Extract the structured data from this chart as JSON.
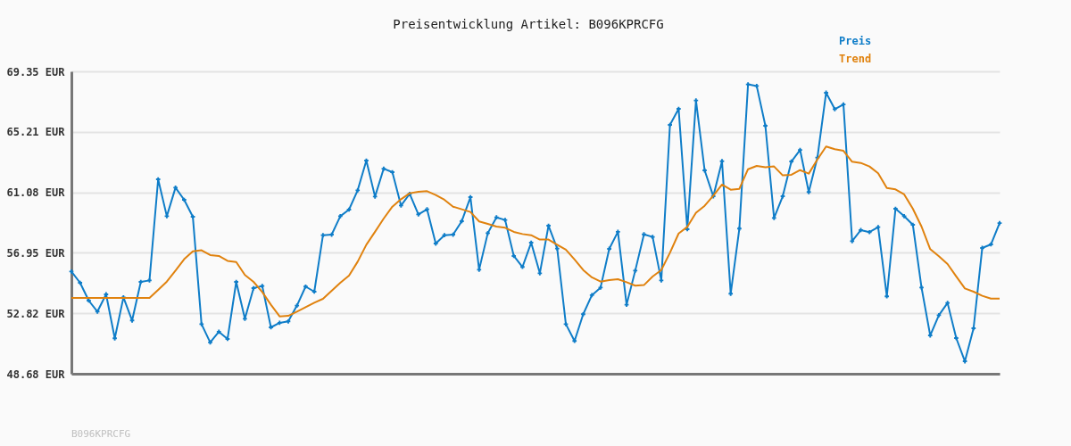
{
  "chart_data": {
    "type": "line",
    "title": "Preisentwicklung Artikel: B096KPRCFG",
    "categories": [
      null,
      null,
      null,
      null,
      null,
      null,
      null,
      null,
      null,
      null,
      null,
      null,
      null,
      null,
      null,
      null,
      null,
      null,
      null,
      null,
      null,
      null,
      null,
      null,
      null,
      null,
      null,
      null,
      null,
      null,
      null,
      null,
      null,
      null,
      null,
      null,
      null,
      null,
      null,
      null,
      null,
      null,
      null,
      null,
      null,
      null,
      null,
      null,
      null,
      null,
      null,
      null,
      null,
      null,
      null,
      null,
      null,
      null,
      null,
      null,
      null,
      null,
      null,
      null,
      null,
      null,
      null,
      null,
      null,
      null,
      null,
      null,
      null,
      null,
      null,
      null,
      null,
      null,
      null,
      null,
      null,
      null,
      null,
      null,
      null,
      null,
      null,
      null,
      null,
      null,
      null,
      null,
      null,
      null,
      null,
      null,
      null,
      null,
      null,
      null,
      null,
      null,
      null,
      null,
      null,
      null,
      null,
      null
    ],
    "series": [
      {
        "name": "Preis",
        "color": "#0f7dc8",
        "marker": "cross",
        "values": [
          55.67,
          54.9,
          53.68,
          52.93,
          54.11,
          51.1,
          53.9,
          52.32,
          54.96,
          55.06,
          61.97,
          59.45,
          61.4,
          60.57,
          59.41,
          52.07,
          50.82,
          51.55,
          51.06,
          54.96,
          52.44,
          54.53,
          54.68,
          51.85,
          52.16,
          52.26,
          53.34,
          54.64,
          54.29,
          58.15,
          58.19,
          59.45,
          59.9,
          61.22,
          63.25,
          60.79,
          62.7,
          62.46,
          60.18,
          60.98,
          59.57,
          59.92,
          57.58,
          58.15,
          58.19,
          59.11,
          60.75,
          55.79,
          58.29,
          59.37,
          59.19,
          56.73,
          55.98,
          57.64,
          55.55,
          58.8,
          57.24,
          52.07,
          50.92,
          52.75,
          54.05,
          54.57,
          57.22,
          58.38,
          53.4,
          55.73,
          58.21,
          58.03,
          55.06,
          65.69,
          66.79,
          58.56,
          67.36,
          62.58,
          60.81,
          63.21,
          54.15,
          58.6,
          68.46,
          68.35,
          65.63,
          59.33,
          60.81,
          63.19,
          63.98,
          61.1,
          63.46,
          67.89,
          66.77,
          67.09,
          57.74,
          58.5,
          58.36,
          58.7,
          53.97,
          59.96,
          59.45,
          58.86,
          54.57,
          51.3,
          52.68,
          53.52,
          51.12,
          49.53,
          51.79,
          57.28,
          57.52,
          58.98
        ]
      },
      {
        "name": "Trend",
        "color": "#e0820e",
        "marker": "none",
        "values": [
          53.86,
          53.86,
          53.86,
          53.86,
          53.86,
          53.86,
          53.86,
          53.86,
          53.86,
          53.86,
          54.41,
          54.98,
          55.73,
          56.51,
          57.05,
          57.12,
          56.79,
          56.73,
          56.4,
          56.32,
          55.43,
          54.96,
          54.27,
          53.4,
          52.6,
          52.64,
          52.93,
          53.23,
          53.54,
          53.8,
          54.35,
          54.9,
          55.39,
          56.34,
          57.5,
          58.38,
          59.29,
          60.1,
          60.61,
          61.02,
          61.12,
          61.16,
          60.9,
          60.57,
          60.1,
          59.92,
          59.74,
          59.09,
          58.92,
          58.74,
          58.66,
          58.38,
          58.23,
          58.15,
          57.85,
          57.85,
          57.5,
          57.16,
          56.49,
          55.77,
          55.27,
          54.98,
          55.08,
          55.14,
          54.94,
          54.7,
          54.74,
          55.33,
          55.77,
          56.95,
          58.27,
          58.72,
          59.68,
          60.16,
          60.85,
          61.61,
          61.26,
          61.32,
          62.66,
          62.89,
          62.79,
          62.85,
          62.24,
          62.28,
          62.6,
          62.36,
          63.33,
          64.21,
          64.03,
          63.92,
          63.17,
          63.09,
          62.85,
          62.38,
          61.38,
          61.28,
          60.94,
          59.96,
          58.74,
          57.2,
          56.71,
          56.18,
          55.33,
          54.51,
          54.29,
          54.01,
          53.82,
          53.82
        ]
      }
    ],
    "ylim": [
      48.68,
      69.35
    ],
    "yticks": [
      {
        "value": 48.68,
        "label": "48.68 EUR"
      },
      {
        "value": 52.82,
        "label": "52.82 EUR"
      },
      {
        "value": 56.95,
        "label": "56.95 EUR"
      },
      {
        "value": 61.08,
        "label": "61.08 EUR"
      },
      {
        "value": 65.21,
        "label": "65.21 EUR"
      },
      {
        "value": 69.35,
        "label": "69.35 EUR"
      }
    ],
    "grid": "y",
    "legend": "top right",
    "line_style": "solid",
    "tick_labels": "y",
    "annotations": [
      "B096KPRCFG"
    ]
  }
}
